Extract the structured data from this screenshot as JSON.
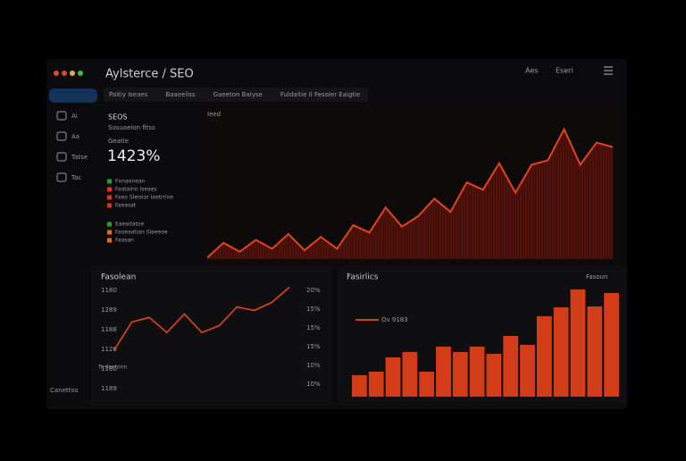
{
  "header": {
    "title": "Aylsterce / SEO",
    "right_text": "Aes",
    "badge": "Eseri"
  },
  "toolbar": [
    "Paitiy Iseaes",
    "Baaeeliss",
    "Gaeeton Baiyse",
    "Fuldaitie Il Fesoier Eaigtie"
  ],
  "sidebar": {
    "items": [
      "Ai",
      "Aa",
      "Tatse",
      "Tac"
    ],
    "footer": "Canettos"
  },
  "summary": {
    "title": "SEOS",
    "subtitle": "Sosuaeion fitss",
    "label": "Geatle",
    "value": "1423%",
    "list": [
      {
        "text": "Fnnaonean",
        "color": "#2f9a3a"
      },
      {
        "text": "Faatainn Iseaes",
        "color": "#d33a22"
      },
      {
        "text": "Faeo Sleisior Iaetrrloe",
        "color": "#d33a22"
      },
      {
        "text": "Faeasat",
        "color": "#d33a22"
      },
      {
        "text": "Eaeaitatoe",
        "color": "#2f9a3a"
      },
      {
        "text": "Faoeaatian Slaeeoe",
        "color": "#e0701f"
      },
      {
        "text": "Faasan",
        "color": "#e0701f"
      }
    ]
  },
  "traffic_chart": {
    "label": "Ieed",
    "color": "#e0451f",
    "ylim": [
      0,
      100
    ],
    "values": [
      1,
      11,
      5,
      13,
      7,
      17,
      6,
      15,
      7,
      23,
      18,
      35,
      22,
      29,
      41,
      32,
      52,
      47,
      65,
      45,
      64,
      67,
      88,
      64,
      79,
      76
    ]
  },
  "line_panel": {
    "title": "Fasolean",
    "note": "Trrdeetonn",
    "color": "#e0451f",
    "ylim": [
      0,
      100
    ],
    "left_labels": [
      "1180",
      "1289",
      "1188",
      "1126",
      "1180",
      "1189"
    ],
    "right_labels": [
      "20%",
      "15%",
      "15%",
      "15%",
      "10%",
      "10%"
    ],
    "values": [
      41,
      65,
      69,
      56,
      72,
      56,
      62,
      78,
      75,
      82,
      95
    ]
  },
  "bar_panel": {
    "title": "Fasirlics",
    "legend": "Ov 9183",
    "menu": "Fasoun",
    "color": "#d23c17",
    "ylim": [
      0,
      130
    ],
    "values": [
      24,
      28,
      44,
      50,
      28,
      56,
      50,
      56,
      48,
      68,
      58,
      90,
      100,
      120,
      101,
      116
    ]
  }
}
